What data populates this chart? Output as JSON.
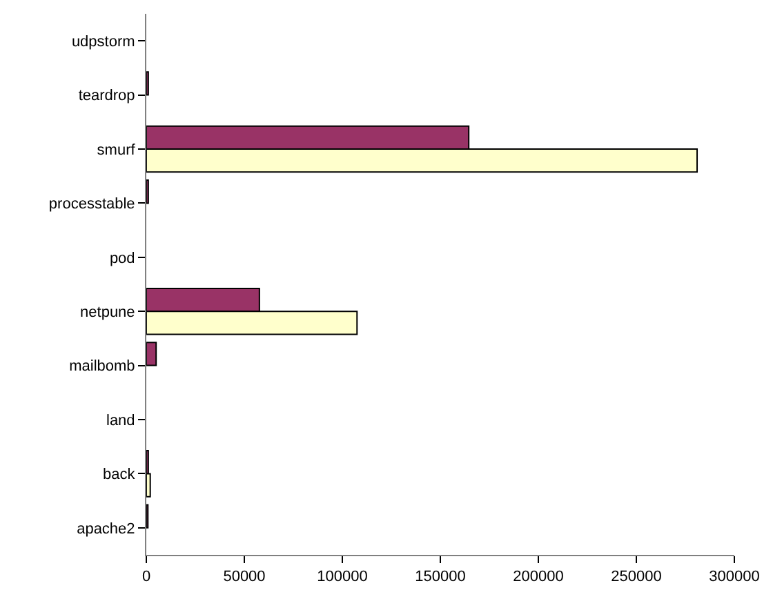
{
  "chart_data": {
    "type": "bar",
    "orientation": "horizontal",
    "categories": [
      "udpstorm",
      "teardrop",
      "smurf",
      "processtable",
      "pod",
      "netpune",
      "mailbomb",
      "land",
      "back",
      "apache2"
    ],
    "series": [
      {
        "color": "#993366",
        "values": [
          0,
          1000,
          164500,
          1000,
          0,
          57700,
          5000,
          0,
          1000,
          800
        ]
      },
      {
        "color": "#ffffcc",
        "values": [
          0,
          0,
          281000,
          0,
          0,
          107500,
          0,
          0,
          2000,
          0
        ]
      }
    ],
    "xlim": [
      0,
      300000
    ],
    "xticks": [
      0,
      50000,
      100000,
      150000,
      200000,
      250000,
      300000
    ]
  }
}
